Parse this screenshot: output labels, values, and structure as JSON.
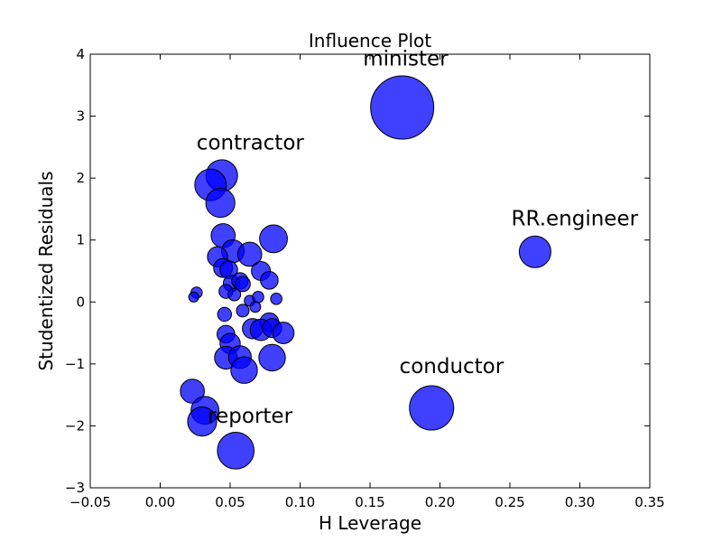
{
  "chart_data": {
    "type": "scatter",
    "title": "Influence Plot",
    "xlabel": "H Leverage",
    "ylabel": "Studentized Residuals",
    "xlim": [
      -0.05,
      0.35
    ],
    "ylim": [
      -3,
      4
    ],
    "x_ticks": [
      -0.05,
      0.0,
      0.05,
      0.1,
      0.15,
      0.2,
      0.25,
      0.3,
      0.35
    ],
    "x_tick_labels": [
      "−0.05",
      "0.00",
      "0.05",
      "0.10",
      "0.15",
      "0.20",
      "0.25",
      "0.30",
      "0.35"
    ],
    "y_ticks": [
      -3,
      -2,
      -1,
      0,
      1,
      2,
      3,
      4
    ],
    "y_tick_labels": [
      "−3",
      "−2",
      "−1",
      "0",
      "1",
      "2",
      "3",
      "4"
    ],
    "grid": false,
    "marker_color": "#0000ff",
    "marker_edge_color": "#000000",
    "points": [
      {
        "x": 0.173,
        "y": 3.14,
        "size": 1.0
      },
      {
        "x": 0.268,
        "y": 0.81,
        "size": 0.5
      },
      {
        "x": 0.194,
        "y": -1.71,
        "size": 0.7
      },
      {
        "x": 0.054,
        "y": -2.4,
        "size": 0.58
      },
      {
        "x": 0.044,
        "y": 2.04,
        "size": 0.5
      },
      {
        "x": 0.036,
        "y": 1.89,
        "size": 0.5
      },
      {
        "x": 0.043,
        "y": 1.6,
        "size": 0.46
      },
      {
        "x": 0.045,
        "y": 1.07,
        "size": 0.38
      },
      {
        "x": 0.081,
        "y": 1.02,
        "size": 0.44
      },
      {
        "x": 0.052,
        "y": 0.82,
        "size": 0.36
      },
      {
        "x": 0.064,
        "y": 0.77,
        "size": 0.38
      },
      {
        "x": 0.041,
        "y": 0.73,
        "size": 0.32
      },
      {
        "x": 0.072,
        "y": 0.5,
        "size": 0.3
      },
      {
        "x": 0.045,
        "y": 0.55,
        "size": 0.3
      },
      {
        "x": 0.049,
        "y": 0.52,
        "size": 0.28
      },
      {
        "x": 0.078,
        "y": 0.35,
        "size": 0.28
      },
      {
        "x": 0.051,
        "y": 0.3,
        "size": 0.26
      },
      {
        "x": 0.057,
        "y": 0.34,
        "size": 0.26
      },
      {
        "x": 0.059,
        "y": 0.29,
        "size": 0.24
      },
      {
        "x": 0.047,
        "y": 0.17,
        "size": 0.22
      },
      {
        "x": 0.053,
        "y": 0.12,
        "size": 0.2
      },
      {
        "x": 0.026,
        "y": 0.15,
        "size": 0.18
      },
      {
        "x": 0.024,
        "y": 0.08,
        "size": 0.16
      },
      {
        "x": 0.064,
        "y": 0.02,
        "size": 0.17
      },
      {
        "x": 0.07,
        "y": 0.08,
        "size": 0.18
      },
      {
        "x": 0.083,
        "y": 0.05,
        "size": 0.18
      },
      {
        "x": 0.068,
        "y": -0.08,
        "size": 0.17
      },
      {
        "x": 0.059,
        "y": -0.14,
        "size": 0.2
      },
      {
        "x": 0.046,
        "y": -0.2,
        "size": 0.22
      },
      {
        "x": 0.078,
        "y": -0.33,
        "size": 0.3
      },
      {
        "x": 0.066,
        "y": -0.43,
        "size": 0.32
      },
      {
        "x": 0.072,
        "y": -0.45,
        "size": 0.34
      },
      {
        "x": 0.08,
        "y": -0.42,
        "size": 0.3
      },
      {
        "x": 0.088,
        "y": -0.5,
        "size": 0.34
      },
      {
        "x": 0.047,
        "y": -0.52,
        "size": 0.28
      },
      {
        "x": 0.05,
        "y": -0.67,
        "size": 0.32
      },
      {
        "x": 0.047,
        "y": -0.9,
        "size": 0.36
      },
      {
        "x": 0.057,
        "y": -0.89,
        "size": 0.36
      },
      {
        "x": 0.08,
        "y": -0.9,
        "size": 0.42
      },
      {
        "x": 0.06,
        "y": -1.1,
        "size": 0.42
      },
      {
        "x": 0.023,
        "y": -1.44,
        "size": 0.38
      },
      {
        "x": 0.032,
        "y": -1.75,
        "size": 0.44
      },
      {
        "x": 0.03,
        "y": -1.93,
        "size": 0.46
      }
    ],
    "annotations": [
      {
        "text": "minister",
        "x": 0.145,
        "y": 3.82
      },
      {
        "text": "contractor",
        "x": 0.026,
        "y": 2.46
      },
      {
        "text": "RR.engineer",
        "x": 0.251,
        "y": 1.24
      },
      {
        "text": "conductor",
        "x": 0.171,
        "y": -1.15
      },
      {
        "text": "reporter",
        "x": 0.034,
        "y": -1.95
      }
    ]
  }
}
